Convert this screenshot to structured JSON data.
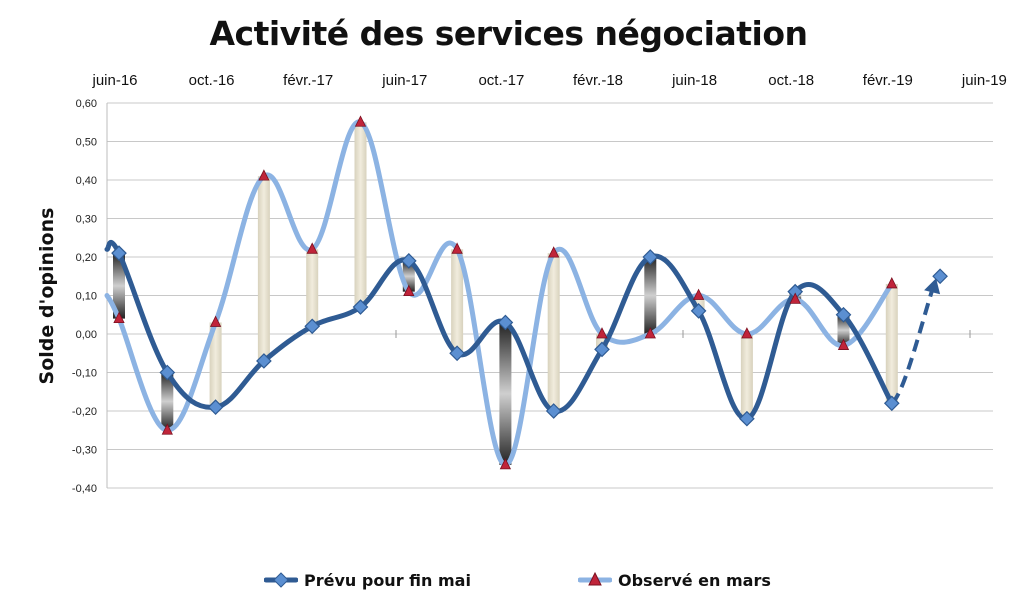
{
  "chart_data": {
    "type": "line",
    "title": "Activité des services négociation",
    "ylabel": "Solde d'opinions",
    "xlabel": "",
    "x_tick_labels": [
      "juin-16",
      "oct.-16",
      "févr.-17",
      "juin-17",
      "oct.-17",
      "févr.-18",
      "juin-18",
      "oct.-18",
      "févr.-19",
      "juin-19"
    ],
    "ylim": [
      -0.4,
      0.6
    ],
    "y_ticks": [
      "-0,40",
      "-0,30",
      "-0,20",
      "-0,10",
      "0,00",
      "0,10",
      "0,20",
      "0,30",
      "0,40",
      "0,50",
      "0,60"
    ],
    "grid": true,
    "legend_position": "bottom",
    "series": [
      {
        "name": "Prévu pour fin mai",
        "color": "#2f5b93",
        "marker": "diamond",
        "values": [
          0.21,
          -0.1,
          -0.19,
          -0.07,
          0.02,
          0.07,
          0.19,
          -0.05,
          0.03,
          -0.2,
          -0.04,
          0.2,
          0.06,
          -0.22,
          0.11,
          0.05,
          -0.18
        ],
        "forecast_value": 0.15
      },
      {
        "name": "Observé en mars",
        "color": "#8cb3e3",
        "marker": "triangle",
        "values": [
          0.04,
          -0.25,
          0.03,
          0.41,
          0.22,
          0.55,
          0.11,
          0.22,
          -0.34,
          0.21,
          0.0,
          0.0,
          0.1,
          0.0,
          0.09,
          -0.03,
          0.13
        ]
      }
    ]
  },
  "legend": {
    "items": [
      {
        "label": "Prévu pour fin mai"
      },
      {
        "label": "Observé en mars"
      }
    ]
  }
}
